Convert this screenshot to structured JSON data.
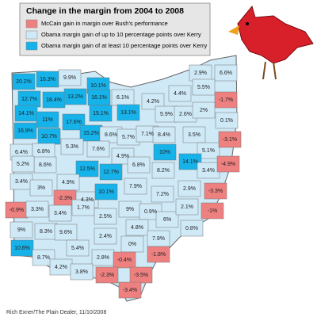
{
  "title": "Change in the margin from 2004 to 2008",
  "legend": [
    {
      "label": "McCain gain in margin over Bush's performance",
      "color": "#ee8080"
    },
    {
      "label": "Obama margin gain of up to 10 percentage points over Kerry",
      "color": "#cfe9f7"
    },
    {
      "label": "Obama margin gain of at least 10 percentage points over Kerry",
      "color": "#16b2ea"
    }
  ],
  "counties": [
    {
      "label": "20.2%",
      "category": 2
    },
    {
      "label": "16.3%",
      "category": 2
    },
    {
      "label": "9.9%",
      "category": 1
    },
    {
      "label": "10.1%",
      "category": 2
    },
    {
      "label": "2.9%",
      "category": 1
    },
    {
      "label": "6.6%",
      "category": 1
    },
    {
      "label": "12.7%",
      "category": 2
    },
    {
      "label": "18.4%",
      "category": 2
    },
    {
      "label": "13.2%",
      "category": 2
    },
    {
      "label": "16.1%",
      "category": 2
    },
    {
      "label": "6.1%",
      "category": 1
    },
    {
      "label": "4.4%",
      "category": 1
    },
    {
      "label": "5.5%",
      "category": 1
    },
    {
      "label": "-1.7%",
      "category": 0
    },
    {
      "label": "4.2%",
      "category": 1
    },
    {
      "label": "14.1%",
      "category": 2
    },
    {
      "label": "11%",
      "category": 2
    },
    {
      "label": "17.6%",
      "category": 2
    },
    {
      "label": "15.1%",
      "category": 2
    },
    {
      "label": "13.1%",
      "category": 2
    },
    {
      "label": "5.9%",
      "category": 1
    },
    {
      "label": "2.6%",
      "category": 1
    },
    {
      "label": "2%",
      "category": 1
    },
    {
      "label": "16.9%",
      "category": 2
    },
    {
      "label": "10.7%",
      "category": 2
    },
    {
      "label": "15.2%",
      "category": 2
    },
    {
      "label": "8.6%",
      "category": 1
    },
    {
      "label": "5.7%",
      "category": 1
    },
    {
      "label": "7.1%",
      "category": 1
    },
    {
      "label": "8.4%",
      "category": 1
    },
    {
      "label": "3.5%",
      "category": 1
    },
    {
      "label": "0.1%",
      "category": 1
    },
    {
      "label": "5.3%",
      "category": 1
    },
    {
      "label": "7.6%",
      "category": 1
    },
    {
      "label": "4.9%",
      "category": 1
    },
    {
      "label": "10%",
      "category": 2
    },
    {
      "label": "5.1%",
      "category": 1
    },
    {
      "label": "-3.1%",
      "category": 0
    },
    {
      "label": "6.4%",
      "category": 1
    },
    {
      "label": "6.8%",
      "category": 1
    },
    {
      "label": "8.6%",
      "category": 1
    },
    {
      "label": "5.2%",
      "category": 1
    },
    {
      "label": "12.5%",
      "category": 2
    },
    {
      "label": "12.7%",
      "category": 2
    },
    {
      "label": "6.8%",
      "category": 1
    },
    {
      "label": "8.2%",
      "category": 1
    },
    {
      "label": "14.1%",
      "category": 2
    },
    {
      "label": "3.4%",
      "category": 1
    },
    {
      "label": "-4.9%",
      "category": 0
    },
    {
      "label": "3.4%",
      "category": 1
    },
    {
      "label": "3%",
      "category": 1
    },
    {
      "label": "4.9%",
      "category": 1
    },
    {
      "label": "-2.3%",
      "category": 0
    },
    {
      "label": "4.3%",
      "category": 1
    },
    {
      "label": "10.1%",
      "category": 2
    },
    {
      "label": "7.9%",
      "category": 1
    },
    {
      "label": "7.2%",
      "category": 1
    },
    {
      "label": "2.9%",
      "category": 1
    },
    {
      "label": "-3.3%",
      "category": 0
    },
    {
      "label": "-0.9%",
      "category": 0
    },
    {
      "label": "3.3%",
      "category": 1
    },
    {
      "label": "3.4%",
      "category": 1
    },
    {
      "label": "1.7%",
      "category": 1
    },
    {
      "label": "2.5%",
      "category": 1
    },
    {
      "label": "9%",
      "category": 1
    },
    {
      "label": "0.9%",
      "category": 1
    },
    {
      "label": "6%",
      "category": 1
    },
    {
      "label": "2.1%",
      "category": 1
    },
    {
      "label": "-1%",
      "category": 0
    },
    {
      "label": "9%",
      "category": 1
    },
    {
      "label": "8.3%",
      "category": 1
    },
    {
      "label": "9.6%",
      "category": 1
    },
    {
      "label": "4.8%",
      "category": 1
    },
    {
      "label": "7.9%",
      "category": 1
    },
    {
      "label": "0.8%",
      "category": 1
    },
    {
      "label": "2.4%",
      "category": 1
    },
    {
      "label": "10.6%",
      "category": 2
    },
    {
      "label": "5.4%",
      "category": 1
    },
    {
      "label": "0%",
      "category": 1
    },
    {
      "label": "8.7%",
      "category": 1
    },
    {
      "label": "-1.8%",
      "category": 0
    },
    {
      "label": "2.8%",
      "category": 1
    },
    {
      "label": "-0.4%",
      "category": 0
    },
    {
      "label": "4.2%",
      "category": 1
    },
    {
      "label": "3.8%",
      "category": 1
    },
    {
      "label": "-2.3%",
      "category": 0
    },
    {
      "label": "-3.5%",
      "category": 0
    },
    {
      "label": "-3.4%",
      "category": 0
    }
  ],
  "credit": "Rich Exner/The Plain Dealer, 11/10/2008"
}
